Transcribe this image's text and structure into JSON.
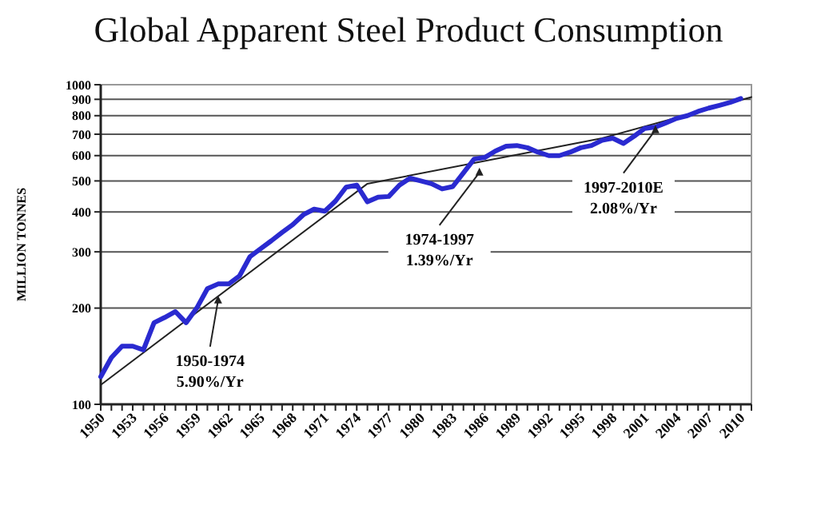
{
  "chart_data": {
    "type": "line",
    "title": "Global Apparent Steel Product Consumption",
    "ylabel": "MILLION TONNES",
    "log": "y",
    "grid": "y",
    "marker": "none",
    "xlim": [
      1950,
      2011
    ],
    "ylim": [
      100,
      1000
    ],
    "xticks": [
      1950,
      {
        "value": 1951,
        "label": null
      },
      {
        "value": 1952,
        "label": null
      },
      1953,
      {
        "value": 1954,
        "label": null
      },
      {
        "value": 1955,
        "label": null
      },
      1956,
      {
        "value": 1957,
        "label": null
      },
      {
        "value": 1958,
        "label": null
      },
      1959,
      {
        "value": 1960,
        "label": null
      },
      {
        "value": 1961,
        "label": null
      },
      1962,
      {
        "value": 1963,
        "label": null
      },
      {
        "value": 1964,
        "label": null
      },
      1965,
      {
        "value": 1966,
        "label": null
      },
      {
        "value": 1967,
        "label": null
      },
      1968,
      {
        "value": 1969,
        "label": null
      },
      {
        "value": 1970,
        "label": null
      },
      1971,
      {
        "value": 1972,
        "label": null
      },
      {
        "value": 1973,
        "label": null
      },
      1974,
      {
        "value": 1975,
        "label": null
      },
      {
        "value": 1976,
        "label": null
      },
      1977,
      {
        "value": 1978,
        "label": null
      },
      {
        "value": 1979,
        "label": null
      },
      1980,
      {
        "value": 1981,
        "label": null
      },
      {
        "value": 1982,
        "label": null
      },
      1983,
      {
        "value": 1984,
        "label": null
      },
      {
        "value": 1985,
        "label": null
      },
      1986,
      {
        "value": 1987,
        "label": null
      },
      {
        "value": 1988,
        "label": null
      },
      1989,
      {
        "value": 1990,
        "label": null
      },
      {
        "value": 1991,
        "label": null
      },
      1992,
      {
        "value": 1993,
        "label": null
      },
      {
        "value": 1994,
        "label": null
      },
      1995,
      {
        "value": 1996,
        "label": null
      },
      {
        "value": 1997,
        "label": null
      },
      1998,
      {
        "value": 1999,
        "label": null
      },
      {
        "value": 2000,
        "label": null
      },
      2001,
      {
        "value": 2002,
        "label": null
      },
      {
        "value": 2003,
        "label": null
      },
      2004,
      {
        "value": 2005,
        "label": null
      },
      {
        "value": 2006,
        "label": null
      },
      2007,
      {
        "value": 2008,
        "label": null
      },
      {
        "value": 2009,
        "label": null
      },
      2010,
      {
        "value": 2011,
        "label": null
      }
    ],
    "yticks": [
      100,
      200,
      300,
      400,
      500,
      600,
      700,
      800,
      900,
      1000
    ],
    "series": [
      {
        "color": "#2a2ad0",
        "x": [
          1950,
          1951,
          1952,
          1953,
          1954,
          1955,
          1956,
          1957,
          1958,
          1959,
          1960,
          1961,
          1962,
          1963,
          1964,
          1965,
          1966,
          1967,
          1968,
          1969,
          1970,
          1971,
          1972,
          1973,
          1974,
          1975,
          1976,
          1977,
          1978,
          1979,
          1980,
          1981,
          1982,
          1983,
          1984,
          1985,
          1986,
          1987,
          1988,
          1989,
          1990,
          1991,
          1992,
          1993,
          1994,
          1995,
          1996,
          1997,
          1998,
          1999,
          2000,
          2001,
          2002,
          2003,
          2004,
          2005,
          2006,
          2007,
          2008,
          2009,
          2010
        ],
        "values": [
          122,
          140,
          152,
          152,
          148,
          180,
          187,
          195,
          180,
          200,
          230,
          238,
          238,
          252,
          290,
          307,
          325,
          345,
          365,
          392,
          408,
          402,
          432,
          478,
          485,
          430,
          445,
          447,
          485,
          510,
          500,
          490,
          472,
          480,
          530,
          585,
          592,
          620,
          642,
          645,
          635,
          615,
          600,
          600,
          615,
          635,
          645,
          670,
          680,
          655,
          690,
          730,
          737,
          760,
          785,
          800,
          825,
          845,
          862,
          880,
          905
        ]
      },
      {
        "type": "line",
        "color": "#222222",
        "x": [
          1950,
          1975,
          1997,
          2011
        ],
        "values": [
          115,
          490,
          680,
          915
        ]
      }
    ],
    "annotations": [
      {
        "text": "1950-1974\n5.90%/Yr",
        "x": 1961,
        "y": 219
      },
      {
        "text": "1974-1997\n1.39%/Yr",
        "x": 1985.5,
        "y": 550
      },
      {
        "text": "1997-2010E\n2.08%/Yr",
        "x": 2002,
        "y": 747
      }
    ]
  }
}
